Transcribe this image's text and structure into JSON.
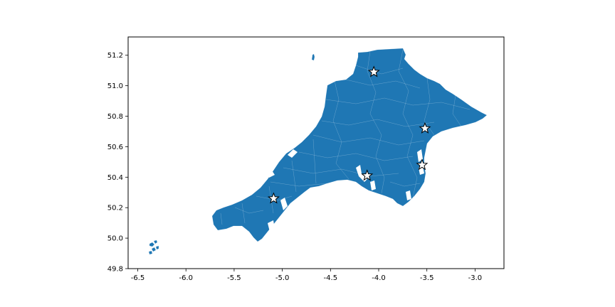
{
  "chart_data": {
    "type": "map",
    "title": "",
    "xlabel": "",
    "ylabel": "",
    "xlim": [
      -6.6,
      -2.7
    ],
    "ylim": [
      49.8,
      51.32
    ],
    "x_ticks": [
      "-6.5",
      "-6.0",
      "-5.5",
      "-5.0",
      "-4.5",
      "-4.0",
      "-3.5",
      "-3.0"
    ],
    "y_ticks": [
      "49.8",
      "50.0",
      "50.2",
      "50.4",
      "50.6",
      "50.8",
      "51.0",
      "51.2"
    ],
    "grid": false,
    "legend": false,
    "region_fill_color": "#1f77b4",
    "region_boundary_color": "#ffffff",
    "marker": {
      "shape": "star",
      "fill": "#ffffff",
      "edge": "#000000"
    },
    "markers": [
      {
        "lon": -4.05,
        "lat": 51.09
      },
      {
        "lon": -3.52,
        "lat": 50.72
      },
      {
        "lon": -3.55,
        "lat": 50.48
      },
      {
        "lon": -4.12,
        "lat": 50.41
      },
      {
        "lon": -5.09,
        "lat": 50.26
      }
    ]
  }
}
